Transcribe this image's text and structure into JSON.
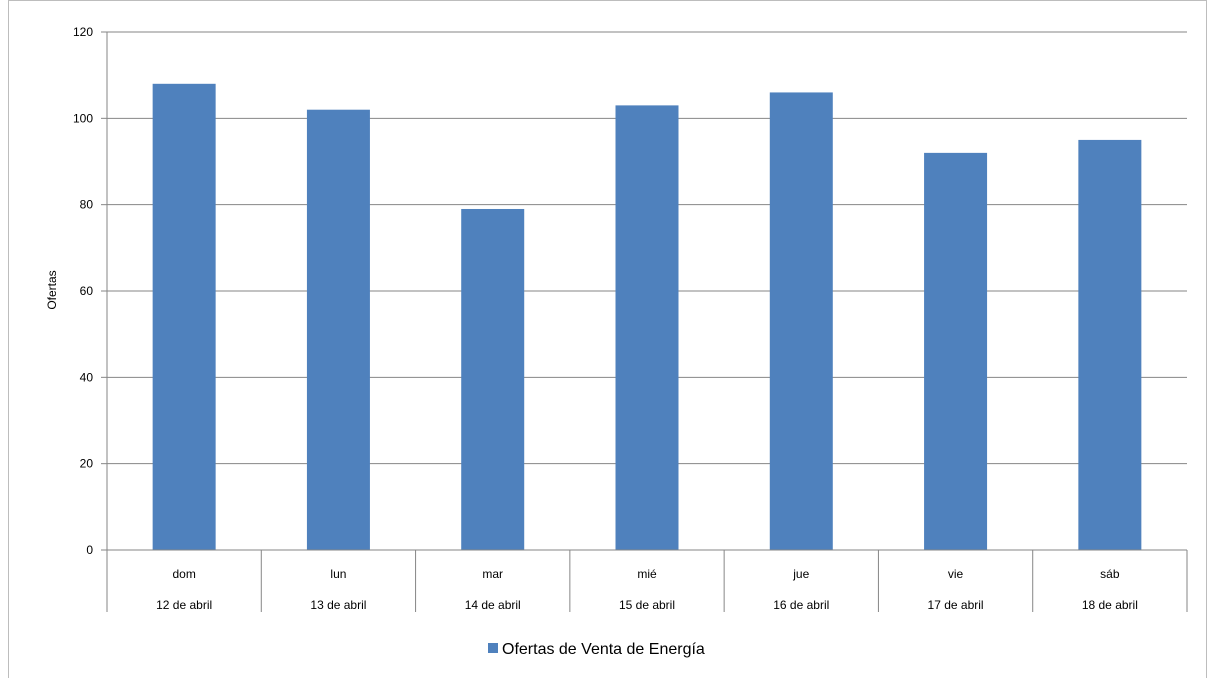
{
  "chart_data": {
    "type": "bar",
    "categories": [
      "dom",
      "lun",
      "mar",
      "mié",
      "jue",
      "vie",
      "sáb"
    ],
    "sub_categories": [
      "12 de abril",
      "13 de abril",
      "14 de abril",
      "15 de abril",
      "16 de abril",
      "17 de abril",
      "18 de abril"
    ],
    "series": [
      {
        "name": "Ofertas de Venta de Energía",
        "values": [
          108,
          102,
          79,
          103,
          106,
          92,
          95
        ]
      }
    ],
    "ylabel": "Ofertas",
    "xlabel": "",
    "ylim": [
      0,
      120
    ],
    "yticks": [
      0,
      20,
      40,
      60,
      80,
      100,
      120
    ],
    "grid": true,
    "legend_position": "bottom-center",
    "colors": {
      "bar": "#4f81bd",
      "grid": "#868686",
      "axis": "#868686"
    }
  }
}
